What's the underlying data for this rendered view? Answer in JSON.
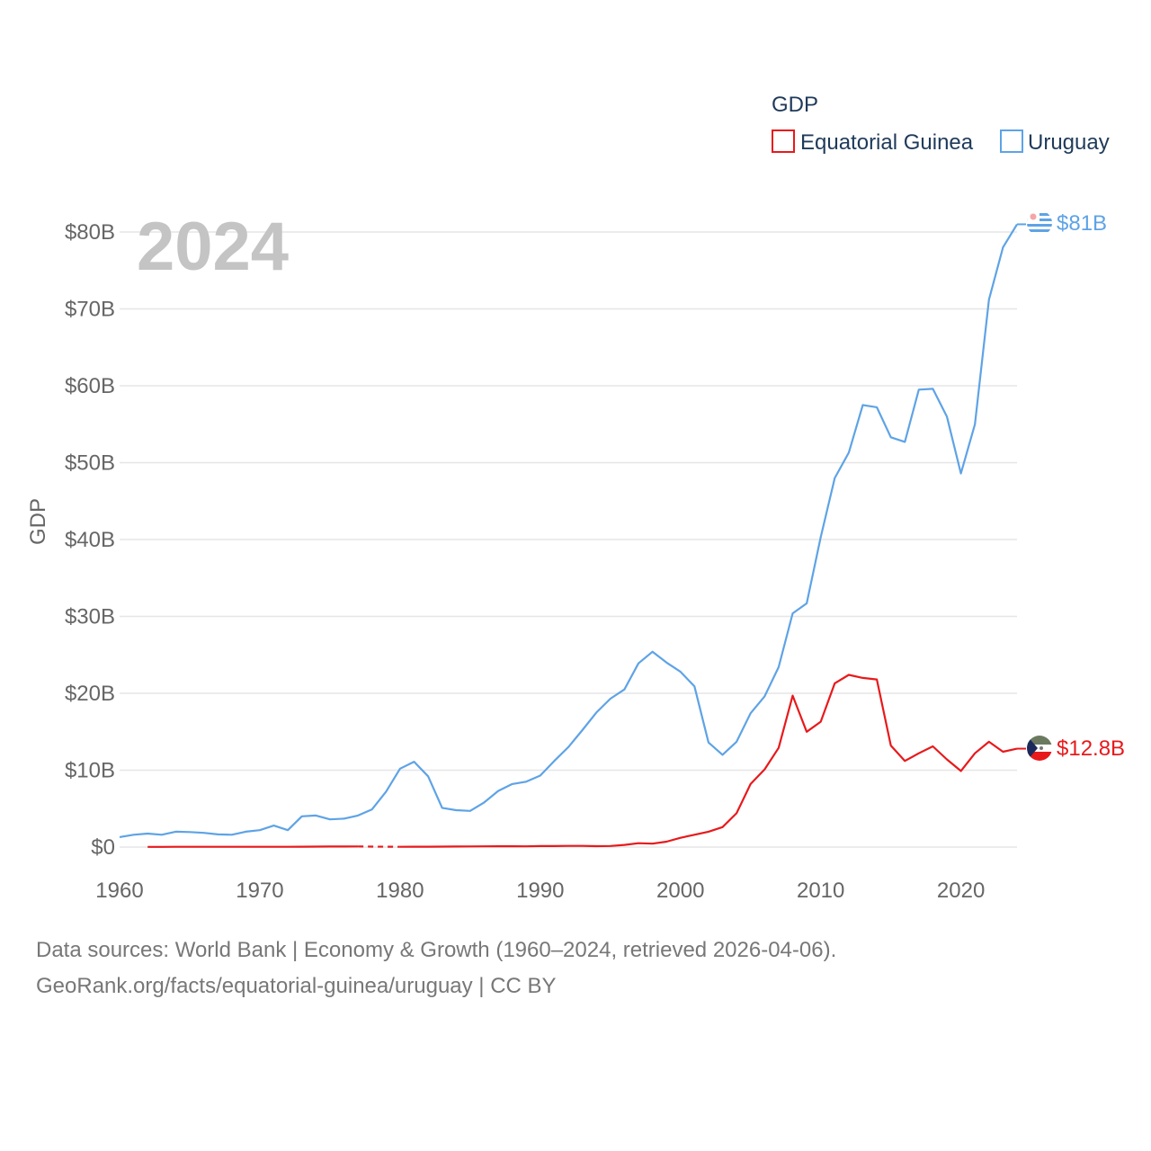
{
  "chart_data": {
    "type": "line",
    "year_label": "2024",
    "ylabel": "GDP",
    "xlabel": "",
    "legend_title": "GDP",
    "legend_position": "top-right",
    "xlim": [
      1960,
      2024
    ],
    "ylim": [
      0,
      80
    ],
    "x_ticks": [
      1960,
      1970,
      1980,
      1990,
      2000,
      2010,
      2020
    ],
    "x_tick_labels": [
      "1960",
      "1970",
      "1980",
      "1990",
      "2000",
      "2010",
      "2020"
    ],
    "y_ticks": [
      0,
      10,
      20,
      30,
      40,
      50,
      60,
      70,
      80
    ],
    "y_tick_labels": [
      "$0",
      "$10B",
      "$20B",
      "$30B",
      "$40B",
      "$50B",
      "$60B",
      "$70B",
      "$80B"
    ],
    "grid": true,
    "series": [
      {
        "name": "Uruguay",
        "color": "#5ea3e6",
        "end_label": "$81B",
        "points": [
          [
            1960,
            1.3
          ],
          [
            1961,
            1.6
          ],
          [
            1962,
            1.75
          ],
          [
            1963,
            1.6
          ],
          [
            1964,
            2.0
          ],
          [
            1965,
            1.95
          ],
          [
            1966,
            1.85
          ],
          [
            1967,
            1.65
          ],
          [
            1968,
            1.6
          ],
          [
            1969,
            2.0
          ],
          [
            1970,
            2.2
          ],
          [
            1971,
            2.8
          ],
          [
            1972,
            2.2
          ],
          [
            1973,
            4.0
          ],
          [
            1974,
            4.1
          ],
          [
            1975,
            3.6
          ],
          [
            1976,
            3.7
          ],
          [
            1977,
            4.1
          ],
          [
            1978,
            4.9
          ],
          [
            1979,
            7.2
          ],
          [
            1980,
            10.2
          ],
          [
            1981,
            11.1
          ],
          [
            1982,
            9.2
          ],
          [
            1983,
            5.1
          ],
          [
            1984,
            4.8
          ],
          [
            1985,
            4.7
          ],
          [
            1986,
            5.8
          ],
          [
            1987,
            7.3
          ],
          [
            1988,
            8.2
          ],
          [
            1989,
            8.5
          ],
          [
            1990,
            9.3
          ],
          [
            1991,
            11.2
          ],
          [
            1992,
            13.0
          ],
          [
            1993,
            15.2
          ],
          [
            1994,
            17.5
          ],
          [
            1995,
            19.3
          ],
          [
            1996,
            20.5
          ],
          [
            1997,
            23.9
          ],
          [
            1998,
            25.4
          ],
          [
            1999,
            24.0
          ],
          [
            2000,
            22.8
          ],
          [
            2001,
            20.9
          ],
          [
            2002,
            13.6
          ],
          [
            2003,
            12.0
          ],
          [
            2004,
            13.7
          ],
          [
            2005,
            17.4
          ],
          [
            2006,
            19.6
          ],
          [
            2007,
            23.4
          ],
          [
            2008,
            30.4
          ],
          [
            2009,
            31.7
          ],
          [
            2010,
            40.3
          ],
          [
            2011,
            48.0
          ],
          [
            2012,
            51.3
          ],
          [
            2013,
            57.5
          ],
          [
            2014,
            57.2
          ],
          [
            2015,
            53.3
          ],
          [
            2016,
            52.7
          ],
          [
            2017,
            59.5
          ],
          [
            2018,
            59.6
          ],
          [
            2019,
            56.0
          ],
          [
            2020,
            48.6
          ],
          [
            2021,
            55.0
          ],
          [
            2022,
            71.2
          ],
          [
            2023,
            78.0
          ],
          [
            2024,
            81.0
          ]
        ]
      },
      {
        "name": "Equatorial Guinea",
        "color": "#e8191b",
        "end_label": "$12.8B",
        "points": [
          [
            1962,
            0.02
          ],
          [
            1963,
            0.02
          ],
          [
            1964,
            0.03
          ],
          [
            1965,
            0.03
          ],
          [
            1966,
            0.03
          ],
          [
            1967,
            0.03
          ],
          [
            1968,
            0.03
          ],
          [
            1969,
            0.03
          ],
          [
            1970,
            0.03
          ],
          [
            1971,
            0.04
          ],
          [
            1972,
            0.04
          ],
          [
            1973,
            0.05
          ],
          [
            1974,
            0.06
          ],
          [
            1975,
            0.07
          ],
          [
            1976,
            0.07
          ],
          [
            1977,
            0.08
          ],
          [
            1980,
            0.04
          ],
          [
            1981,
            0.05
          ],
          [
            1982,
            0.05
          ],
          [
            1983,
            0.06
          ],
          [
            1984,
            0.07
          ],
          [
            1985,
            0.08
          ],
          [
            1986,
            0.09
          ],
          [
            1987,
            0.1
          ],
          [
            1988,
            0.1
          ],
          [
            1989,
            0.09
          ],
          [
            1990,
            0.13
          ],
          [
            1991,
            0.13
          ],
          [
            1992,
            0.15
          ],
          [
            1993,
            0.15
          ],
          [
            1994,
            0.12
          ],
          [
            1995,
            0.14
          ],
          [
            1996,
            0.28
          ],
          [
            1997,
            0.5
          ],
          [
            1998,
            0.45
          ],
          [
            1999,
            0.7
          ],
          [
            2000,
            1.2
          ],
          [
            2001,
            1.6
          ],
          [
            2002,
            2.0
          ],
          [
            2003,
            2.6
          ],
          [
            2004,
            4.4
          ],
          [
            2005,
            8.2
          ],
          [
            2006,
            10.1
          ],
          [
            2007,
            12.9
          ],
          [
            2008,
            19.7
          ],
          [
            2009,
            15.0
          ],
          [
            2010,
            16.3
          ],
          [
            2011,
            21.3
          ],
          [
            2012,
            22.4
          ],
          [
            2013,
            22.0
          ],
          [
            2014,
            21.8
          ],
          [
            2015,
            13.2
          ],
          [
            2016,
            11.2
          ],
          [
            2017,
            12.2
          ],
          [
            2018,
            13.1
          ],
          [
            2019,
            11.4
          ],
          [
            2020,
            9.9
          ],
          [
            2021,
            12.2
          ],
          [
            2022,
            13.7
          ],
          [
            2023,
            12.4
          ],
          [
            2024,
            12.8
          ]
        ]
      }
    ],
    "gap_segment": {
      "series": "Equatorial Guinea",
      "points": [
        [
          1977,
          0.08
        ],
        [
          1978,
          0.06
        ],
        [
          1979,
          0.05
        ],
        [
          1980,
          0.04
        ]
      ]
    }
  },
  "footer": {
    "line1": "Data sources: World Bank | Economy & Growth (1960–2024, retrieved 2026-04-06).",
    "line2": "GeoRank.org/facts/equatorial-guinea/uruguay | CC BY"
  }
}
